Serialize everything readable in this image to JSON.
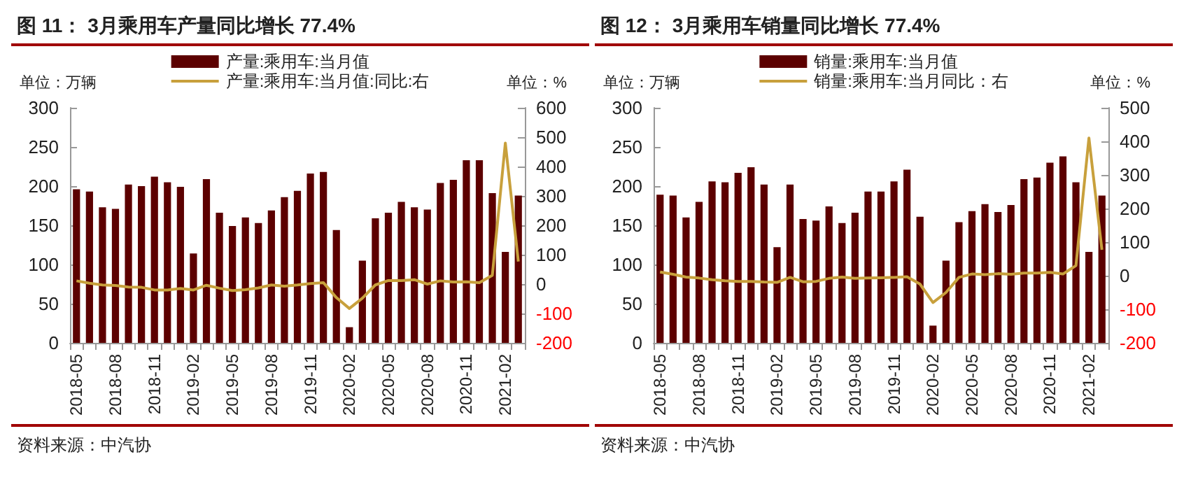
{
  "chart_data": [
    {
      "type": "bar",
      "title": "图 11：  3月乘用车产量同比增长 77.4%",
      "ylabel": "单位：万辆",
      "y2label": "单位：%",
      "annotations": [
        "资料来源：中汽协"
      ],
      "categories": [
        "2018-05",
        null,
        null,
        "2018-08",
        null,
        null,
        "2018-11",
        null,
        null,
        "2019-02",
        null,
        null,
        "2019-05",
        null,
        null,
        "2019-08",
        null,
        null,
        "2019-11",
        null,
        null,
        "2020-02",
        null,
        null,
        "2020-05",
        null,
        null,
        "2020-08",
        null,
        null,
        "2020-11",
        null,
        null,
        "2021-02",
        null
      ],
      "series": [
        {
          "name": "产量:乘用车:当月值",
          "color": "#5c0000",
          "values": [
            196,
            193,
            173,
            171,
            202,
            200,
            212,
            205,
            199,
            114,
            209,
            166,
            149,
            160,
            153,
            169,
            186,
            194,
            216,
            218,
            144,
            20,
            105,
            159,
            166,
            180,
            173,
            170,
            204,
            208,
            233,
            233,
            191,
            116,
            188
          ]
        },
        {
          "name": "产量:乘用车:当月值:同比:右",
          "type": "line",
          "axis": "y2",
          "color": "#c8a03c",
          "values": [
            11,
            3,
            -3,
            -5,
            -10,
            -11,
            -20,
            -20,
            -15,
            -20,
            -4,
            -14,
            -22,
            -19,
            -13,
            -3,
            -7,
            -3,
            2,
            5,
            -46,
            -83,
            -48,
            -3,
            12,
            12,
            15,
            0,
            11,
            7,
            8,
            5,
            30,
            480,
            77
          ]
        }
      ],
      "ylim": [
        0,
        300
      ],
      "yticks": [
        0,
        50,
        100,
        150,
        200,
        250,
        300
      ],
      "y2lim": [
        -200,
        600
      ],
      "y2ticks": [
        -200,
        -100,
        0,
        100,
        200,
        300,
        400,
        500,
        600
      ],
      "legend": "top",
      "grid": false,
      "marker": "none"
    },
    {
      "type": "bar",
      "title": "图 12：  3月乘用车销量同比增长 77.4%",
      "ylabel": "单位：万辆",
      "y2label": "单位：%",
      "annotations": [
        "资料来源：中汽协"
      ],
      "categories": [
        "2018-05",
        null,
        null,
        "2018-08",
        null,
        null,
        "2018-11",
        null,
        null,
        "2019-02",
        null,
        null,
        "2019-05",
        null,
        null,
        "2019-08",
        null,
        null,
        "2019-11",
        null,
        null,
        "2020-02",
        null,
        null,
        "2020-05",
        null,
        null,
        "2020-08",
        null,
        null,
        "2020-11",
        null,
        null,
        "2021-02",
        null
      ],
      "series": [
        {
          "name": "销量:乘用车:当月值",
          "color": "#5c0000",
          "values": [
            189,
            188,
            160,
            180,
            206,
            205,
            217,
            224,
            202,
            122,
            202,
            158,
            156,
            174,
            153,
            166,
            193,
            193,
            206,
            221,
            161,
            22,
            105,
            154,
            168,
            177,
            167,
            176,
            209,
            211,
            230,
            238,
            205,
            116,
            188
          ]
        },
        {
          "name": "销量:乘用车:当月同比：右",
          "type": "line",
          "axis": "y2",
          "color": "#c8a03c",
          "values": [
            11,
            4,
            -4,
            -7,
            -12,
            -15,
            -17,
            -17,
            -19,
            -20,
            -5,
            -18,
            -17,
            -8,
            -4,
            -8,
            -7,
            -6,
            -5,
            -3,
            -25,
            -80,
            -50,
            -5,
            5,
            3,
            6,
            4,
            8,
            8,
            10,
            5,
            30,
            410,
            77
          ]
        }
      ],
      "ylim": [
        0,
        300
      ],
      "yticks": [
        0,
        50,
        100,
        150,
        200,
        250,
        300
      ],
      "y2lim": [
        -200,
        500
      ],
      "y2ticks": [
        -200,
        -100,
        0,
        100,
        200,
        300,
        400,
        500
      ],
      "legend": "top",
      "grid": false,
      "marker": "none"
    }
  ]
}
